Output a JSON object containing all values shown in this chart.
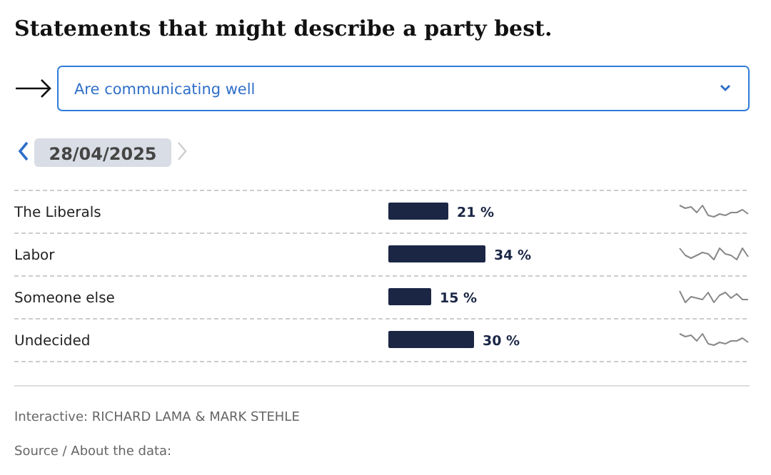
{
  "chart_data": {
    "type": "bar",
    "orientation": "horizontal",
    "title": "Statements that might describe a party best.",
    "subtitle": "Are communicating well",
    "categories": [
      "The Liberals",
      "Labor",
      "Someone else",
      "Undecided"
    ],
    "values": [
      21,
      34,
      15,
      30
    ],
    "value_labels": [
      "21 %",
      "34 %",
      "15 %",
      "30 %"
    ],
    "color": "#1b2645",
    "annotations": [
      "28/04/2025",
      "Interactive: RICHARD LAMA & MARK STEHLE",
      "Source / About the data:"
    ]
  }
}
